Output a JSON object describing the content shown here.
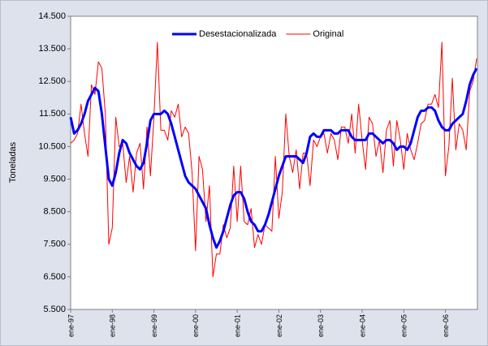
{
  "chart_data": {
    "type": "line",
    "y_label": "Toneladas",
    "categories": [
      "ene-97",
      null,
      null,
      null,
      null,
      null,
      null,
      null,
      null,
      null,
      null,
      null,
      "ene-98",
      null,
      null,
      null,
      null,
      null,
      null,
      null,
      null,
      null,
      null,
      null,
      "ene-99",
      null,
      null,
      null,
      null,
      null,
      null,
      null,
      null,
      null,
      null,
      null,
      "ene-00",
      null,
      null,
      null,
      null,
      null,
      null,
      null,
      null,
      null,
      null,
      null,
      "ene-01",
      null,
      null,
      null,
      null,
      null,
      null,
      null,
      null,
      null,
      null,
      null,
      "ene-02",
      null,
      null,
      null,
      null,
      null,
      null,
      null,
      null,
      null,
      null,
      null,
      "ene-03",
      null,
      null,
      null,
      null,
      null,
      null,
      null,
      null,
      null,
      null,
      null,
      "ene-04",
      null,
      null,
      null,
      null,
      null,
      null,
      null,
      null,
      null,
      null,
      null,
      "ene-05",
      null,
      null,
      null,
      null,
      null,
      null,
      null,
      null,
      null,
      null,
      null,
      "ene-06",
      null,
      null,
      null,
      null,
      null,
      null,
      null,
      null,
      null
    ],
    "series": [
      {
        "name": "Desestacionalizada",
        "color": "#0000ff",
        "width": 3,
        "values": [
          11400,
          10900,
          11000,
          11200,
          11500,
          11900,
          12100,
          12300,
          12200,
          11500,
          10500,
          9500,
          9300,
          9700,
          10300,
          10700,
          10600,
          10300,
          10100,
          9900,
          9800,
          10000,
          10600,
          11300,
          11500,
          11500,
          11500,
          11600,
          11500,
          11200,
          10800,
          10400,
          10000,
          9600,
          9400,
          9300,
          9200,
          9000,
          8800,
          8600,
          8100,
          7700,
          7400,
          7600,
          7900,
          8300,
          8700,
          9000,
          9100,
          9100,
          8900,
          8500,
          8200,
          8100,
          7900,
          7900,
          8100,
          8400,
          8800,
          9200,
          9600,
          9900,
          10200,
          10200,
          10200,
          10200,
          10100,
          10000,
          10300,
          10800,
          10900,
          10800,
          10800,
          11000,
          11000,
          11000,
          10900,
          10900,
          11000,
          11000,
          11000,
          10800,
          10700,
          10700,
          10700,
          10700,
          10900,
          10900,
          10800,
          10700,
          10600,
          10700,
          10700,
          10600,
          10400,
          10500,
          10500,
          10400,
          10600,
          11000,
          11400,
          11600,
          11600,
          11700,
          11700,
          11600,
          11300,
          11100,
          11000,
          11000,
          11200,
          11300,
          11400,
          11500,
          11900,
          12400,
          12700,
          12900
        ]
      },
      {
        "name": "Original",
        "color": "#ff0000",
        "width": 1,
        "values": [
          10600,
          10700,
          10900,
          11800,
          10900,
          10200,
          12400,
          12100,
          13100,
          12900,
          11500,
          7500,
          8000,
          11400,
          10500,
          10600,
          9400,
          10200,
          9100,
          10300,
          10600,
          9200,
          11100,
          9600,
          11400,
          13700,
          11000,
          11000,
          10700,
          11600,
          11400,
          11800,
          10800,
          11100,
          10900,
          9700,
          7300,
          10200,
          9800,
          8200,
          9300,
          6500,
          7200,
          7200,
          8100,
          7700,
          8000,
          9900,
          8200,
          9900,
          8200,
          8100,
          8600,
          7400,
          7800,
          7500,
          8100,
          8000,
          7900,
          10200,
          8300,
          9100,
          11500,
          10200,
          9700,
          10400,
          9200,
          10300,
          10300,
          9300,
          10700,
          10500,
          10800,
          10900,
          10300,
          10900,
          10700,
          10100,
          11100,
          11100,
          10600,
          11500,
          10300,
          11800,
          10700,
          9800,
          11400,
          11200,
          10200,
          10700,
          9700,
          11000,
          11300,
          9900,
          11300,
          10700,
          9800,
          10900,
          10400,
          10100,
          10600,
          11200,
          11300,
          11800,
          11800,
          12100,
          11700,
          13700,
          9600,
          10500,
          12600,
          10400,
          11200,
          11000,
          10400,
          12200,
          12500,
          13200
        ]
      }
    ],
    "ylim": [
      5500,
      14500
    ],
    "yticks": [
      {
        "value": 5500,
        "label": "5.500"
      },
      {
        "value": 6500,
        "label": "6.500"
      },
      {
        "value": 7500,
        "label": "7.500"
      },
      {
        "value": 8500,
        "label": "8.500"
      },
      {
        "value": 9500,
        "label": "9.500"
      },
      {
        "value": 10500,
        "label": "10.500"
      },
      {
        "value": 11500,
        "label": "11.500"
      },
      {
        "value": 12500,
        "label": "12.500"
      },
      {
        "value": 13500,
        "label": "13.500"
      },
      {
        "value": 14500,
        "label": "14.500"
      }
    ],
    "grid": false,
    "legend": "top"
  }
}
